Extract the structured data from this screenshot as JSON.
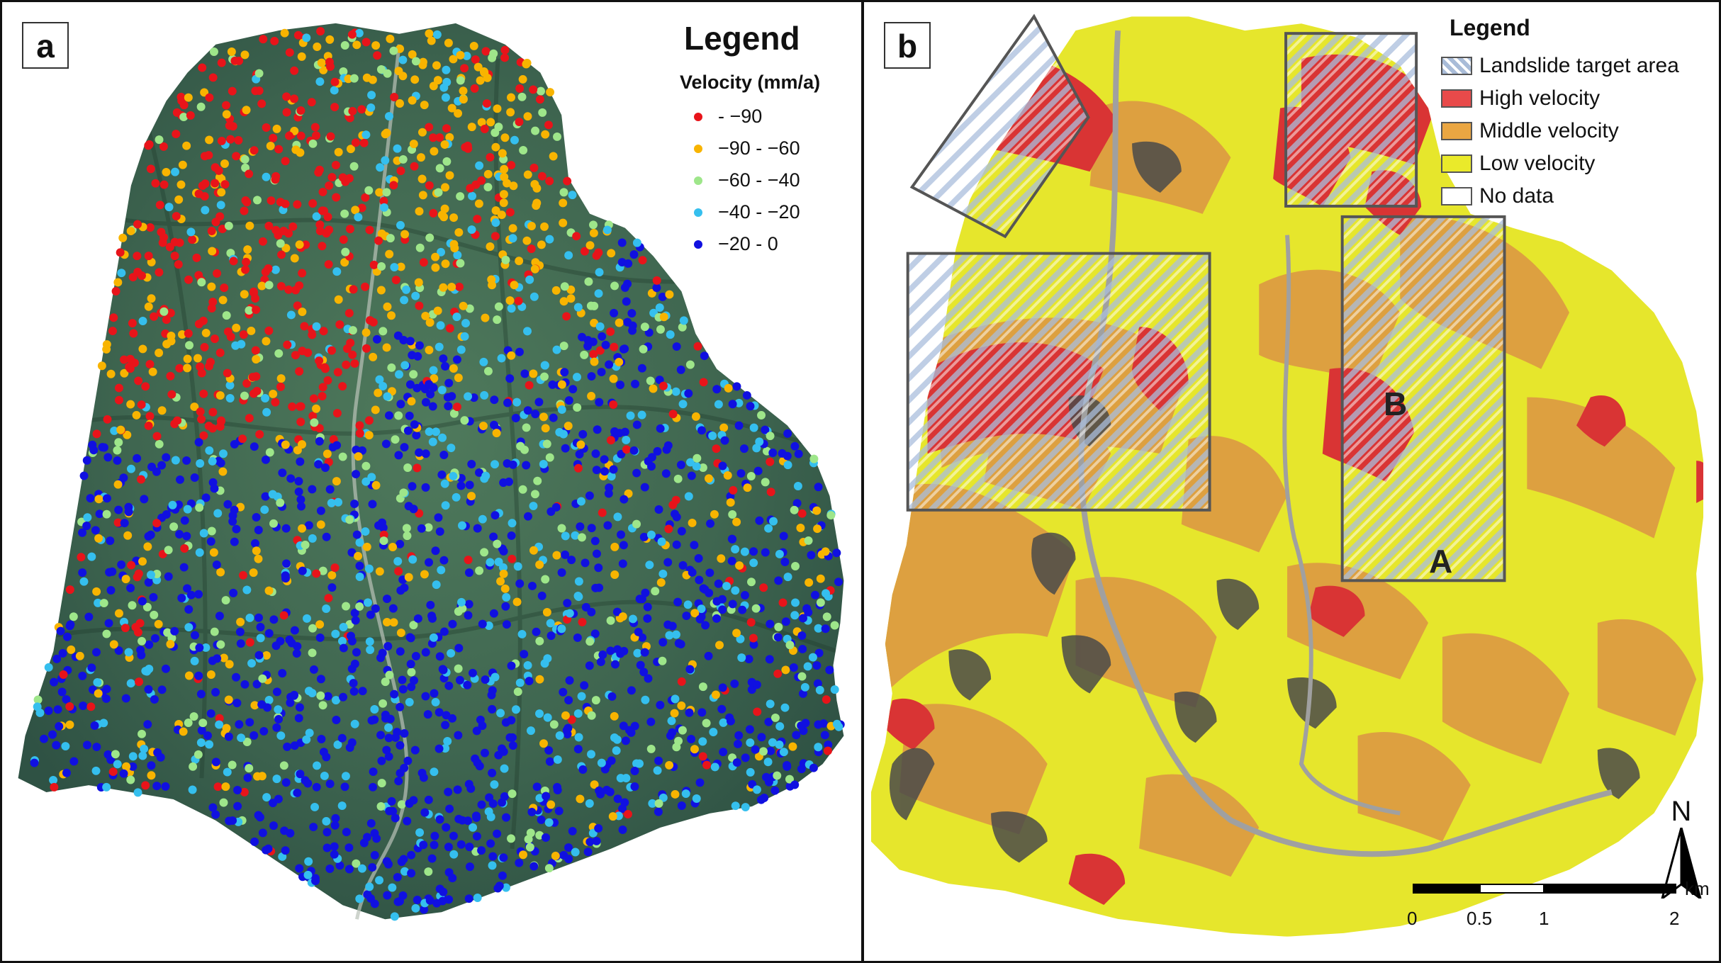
{
  "panel_a": {
    "letter": "a",
    "legend": {
      "title": "Legend",
      "subtitle": "Velocity (mm/a)",
      "classes": [
        {
          "label": "- −90",
          "color": "#e8141a"
        },
        {
          "label": "−90 - −60",
          "color": "#f8b400"
        },
        {
          "label": "−60 - −40",
          "color": "#9ee68a"
        },
        {
          "label": "−40 - −20",
          "color": "#35bfee"
        },
        {
          "label": "−20 - 0",
          "color": "#1010e0"
        }
      ]
    }
  },
  "panel_b": {
    "letter": "b",
    "legend": {
      "title": "Legend",
      "classes": [
        {
          "label": "Landslide target area",
          "color": "hatch"
        },
        {
          "label": "High velocity",
          "color": "#e84a4a"
        },
        {
          "label": "Middle velocity",
          "color": "#eaa642"
        },
        {
          "label": "Low velocity",
          "color": "#eaea2a"
        },
        {
          "label": "No data",
          "color": "#ffffff"
        }
      ]
    },
    "area_labels": [
      "B",
      "A"
    ],
    "north_label": "N",
    "scale": {
      "unit": "km",
      "ticks": [
        "0",
        "0.5",
        "1",
        "2"
      ]
    }
  }
}
